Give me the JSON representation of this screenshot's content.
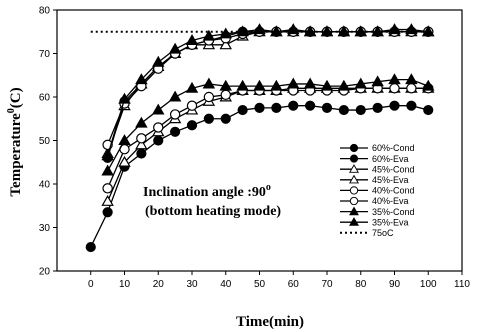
{
  "chart_data": {
    "type": "line",
    "xlabel": "Time(min)",
    "ylabel_main": "Temperature",
    "ylabel_sup": "0",
    "ylabel_unit": "(C)",
    "xlim": [
      -10,
      110
    ],
    "ylim": [
      20,
      80
    ],
    "xticks": [
      0,
      10,
      20,
      30,
      40,
      50,
      60,
      70,
      80,
      90,
      100,
      110
    ],
    "yticks": [
      20,
      30,
      40,
      50,
      60,
      70,
      80
    ],
    "annotation_line1": "Inclination angle :90",
    "annotation_sup": "o",
    "annotation_line2": "(bottom heating mode)",
    "legend_position": "right",
    "series": [
      {
        "name": "60%-Cond",
        "marker": "circle-filled",
        "line": "solid",
        "x": [
          5,
          10,
          15,
          20,
          25,
          30,
          35,
          40,
          45,
          50,
          55,
          60,
          65,
          70,
          75,
          80,
          85,
          90,
          95,
          100
        ],
        "y": [
          46,
          59,
          63,
          67,
          70,
          72,
          73,
          74,
          75,
          75,
          75,
          75,
          75,
          75,
          75,
          75,
          75,
          75,
          75,
          75
        ]
      },
      {
        "name": "60%-Eva",
        "marker": "circle-filled",
        "line": "solid",
        "x": [
          0,
          5,
          10,
          15,
          20,
          25,
          30,
          35,
          40,
          45,
          50,
          55,
          60,
          65,
          70,
          75,
          80,
          85,
          90,
          95,
          100
        ],
        "y": [
          25.5,
          33.5,
          44,
          47,
          50,
          52,
          53.5,
          55,
          55,
          57,
          57.5,
          57.5,
          58,
          58,
          57.5,
          57,
          57,
          57.5,
          58,
          58,
          57
        ]
      },
      {
        "name": "45%-Cond",
        "marker": "triangle-open",
        "line": "solid",
        "x": [
          5,
          10,
          15,
          20,
          25,
          30,
          35,
          40,
          45,
          50,
          55,
          60,
          65,
          70,
          75,
          80,
          85,
          90,
          95,
          100
        ],
        "y": [
          47,
          58,
          63,
          67,
          70,
          72,
          72,
          72,
          74,
          75,
          75,
          75,
          75,
          75,
          75,
          75,
          75,
          75,
          75,
          75
        ]
      },
      {
        "name": "45%-Eva",
        "marker": "triangle-open",
        "line": "solid",
        "x": [
          5,
          10,
          15,
          20,
          25,
          30,
          35,
          40,
          45,
          50,
          55,
          60,
          65,
          70,
          75,
          80,
          85,
          90,
          95,
          100
        ],
        "y": [
          36,
          45,
          49,
          52,
          55,
          57,
          59,
          60,
          61.5,
          61.5,
          61.5,
          62,
          62,
          62,
          62,
          62,
          62,
          62,
          62,
          62
        ]
      },
      {
        "name": "40%-Cond",
        "marker": "circle-open",
        "line": "solid",
        "x": [
          5,
          10,
          15,
          20,
          25,
          30,
          35,
          40,
          45,
          50,
          55,
          60,
          65,
          70,
          75,
          80,
          85,
          90,
          95,
          100
        ],
        "y": [
          49,
          58.5,
          62.5,
          66.5,
          70,
          72,
          73,
          73.5,
          74.5,
          75,
          75,
          75,
          75,
          75,
          75,
          75,
          75,
          75,
          75,
          75
        ]
      },
      {
        "name": "40%-Eva",
        "marker": "circle-open",
        "line": "solid",
        "x": [
          5,
          10,
          15,
          20,
          25,
          30,
          35,
          40,
          45,
          50,
          55,
          60,
          65,
          70,
          75,
          80,
          85,
          90,
          95,
          100
        ],
        "y": [
          39,
          48,
          50.5,
          53,
          56,
          58,
          60,
          60.5,
          61.5,
          61.5,
          61.5,
          61.5,
          61.5,
          61.5,
          61.5,
          62,
          62,
          62,
          62,
          62
        ]
      },
      {
        "name": "35%-Cond",
        "marker": "triangle-filled",
        "line": "solid",
        "x": [
          5,
          10,
          15,
          20,
          25,
          30,
          35,
          40,
          45,
          50,
          55,
          60,
          65,
          70,
          75,
          80,
          85,
          90,
          95,
          100
        ],
        "y": [
          46.5,
          59.5,
          64,
          68,
          71,
          73,
          74,
          74.5,
          75,
          75.5,
          75,
          75.5,
          75,
          75,
          75,
          75,
          75,
          75.5,
          75.5,
          75
        ]
      },
      {
        "name": "35%-Eva",
        "marker": "triangle-filled",
        "line": "solid",
        "x": [
          5,
          10,
          15,
          20,
          25,
          30,
          35,
          40,
          45,
          50,
          55,
          60,
          65,
          70,
          75,
          80,
          85,
          90,
          95,
          100
        ],
        "y": [
          43,
          50,
          54,
          57,
          60,
          62,
          63,
          62.5,
          62.5,
          62.5,
          62.5,
          63,
          63,
          62.5,
          62.5,
          63,
          63.5,
          64,
          64,
          62.5
        ]
      },
      {
        "name": "75oC",
        "marker": "none",
        "line": "dotted",
        "x": [
          0,
          100
        ],
        "y": [
          75,
          75
        ]
      }
    ]
  }
}
